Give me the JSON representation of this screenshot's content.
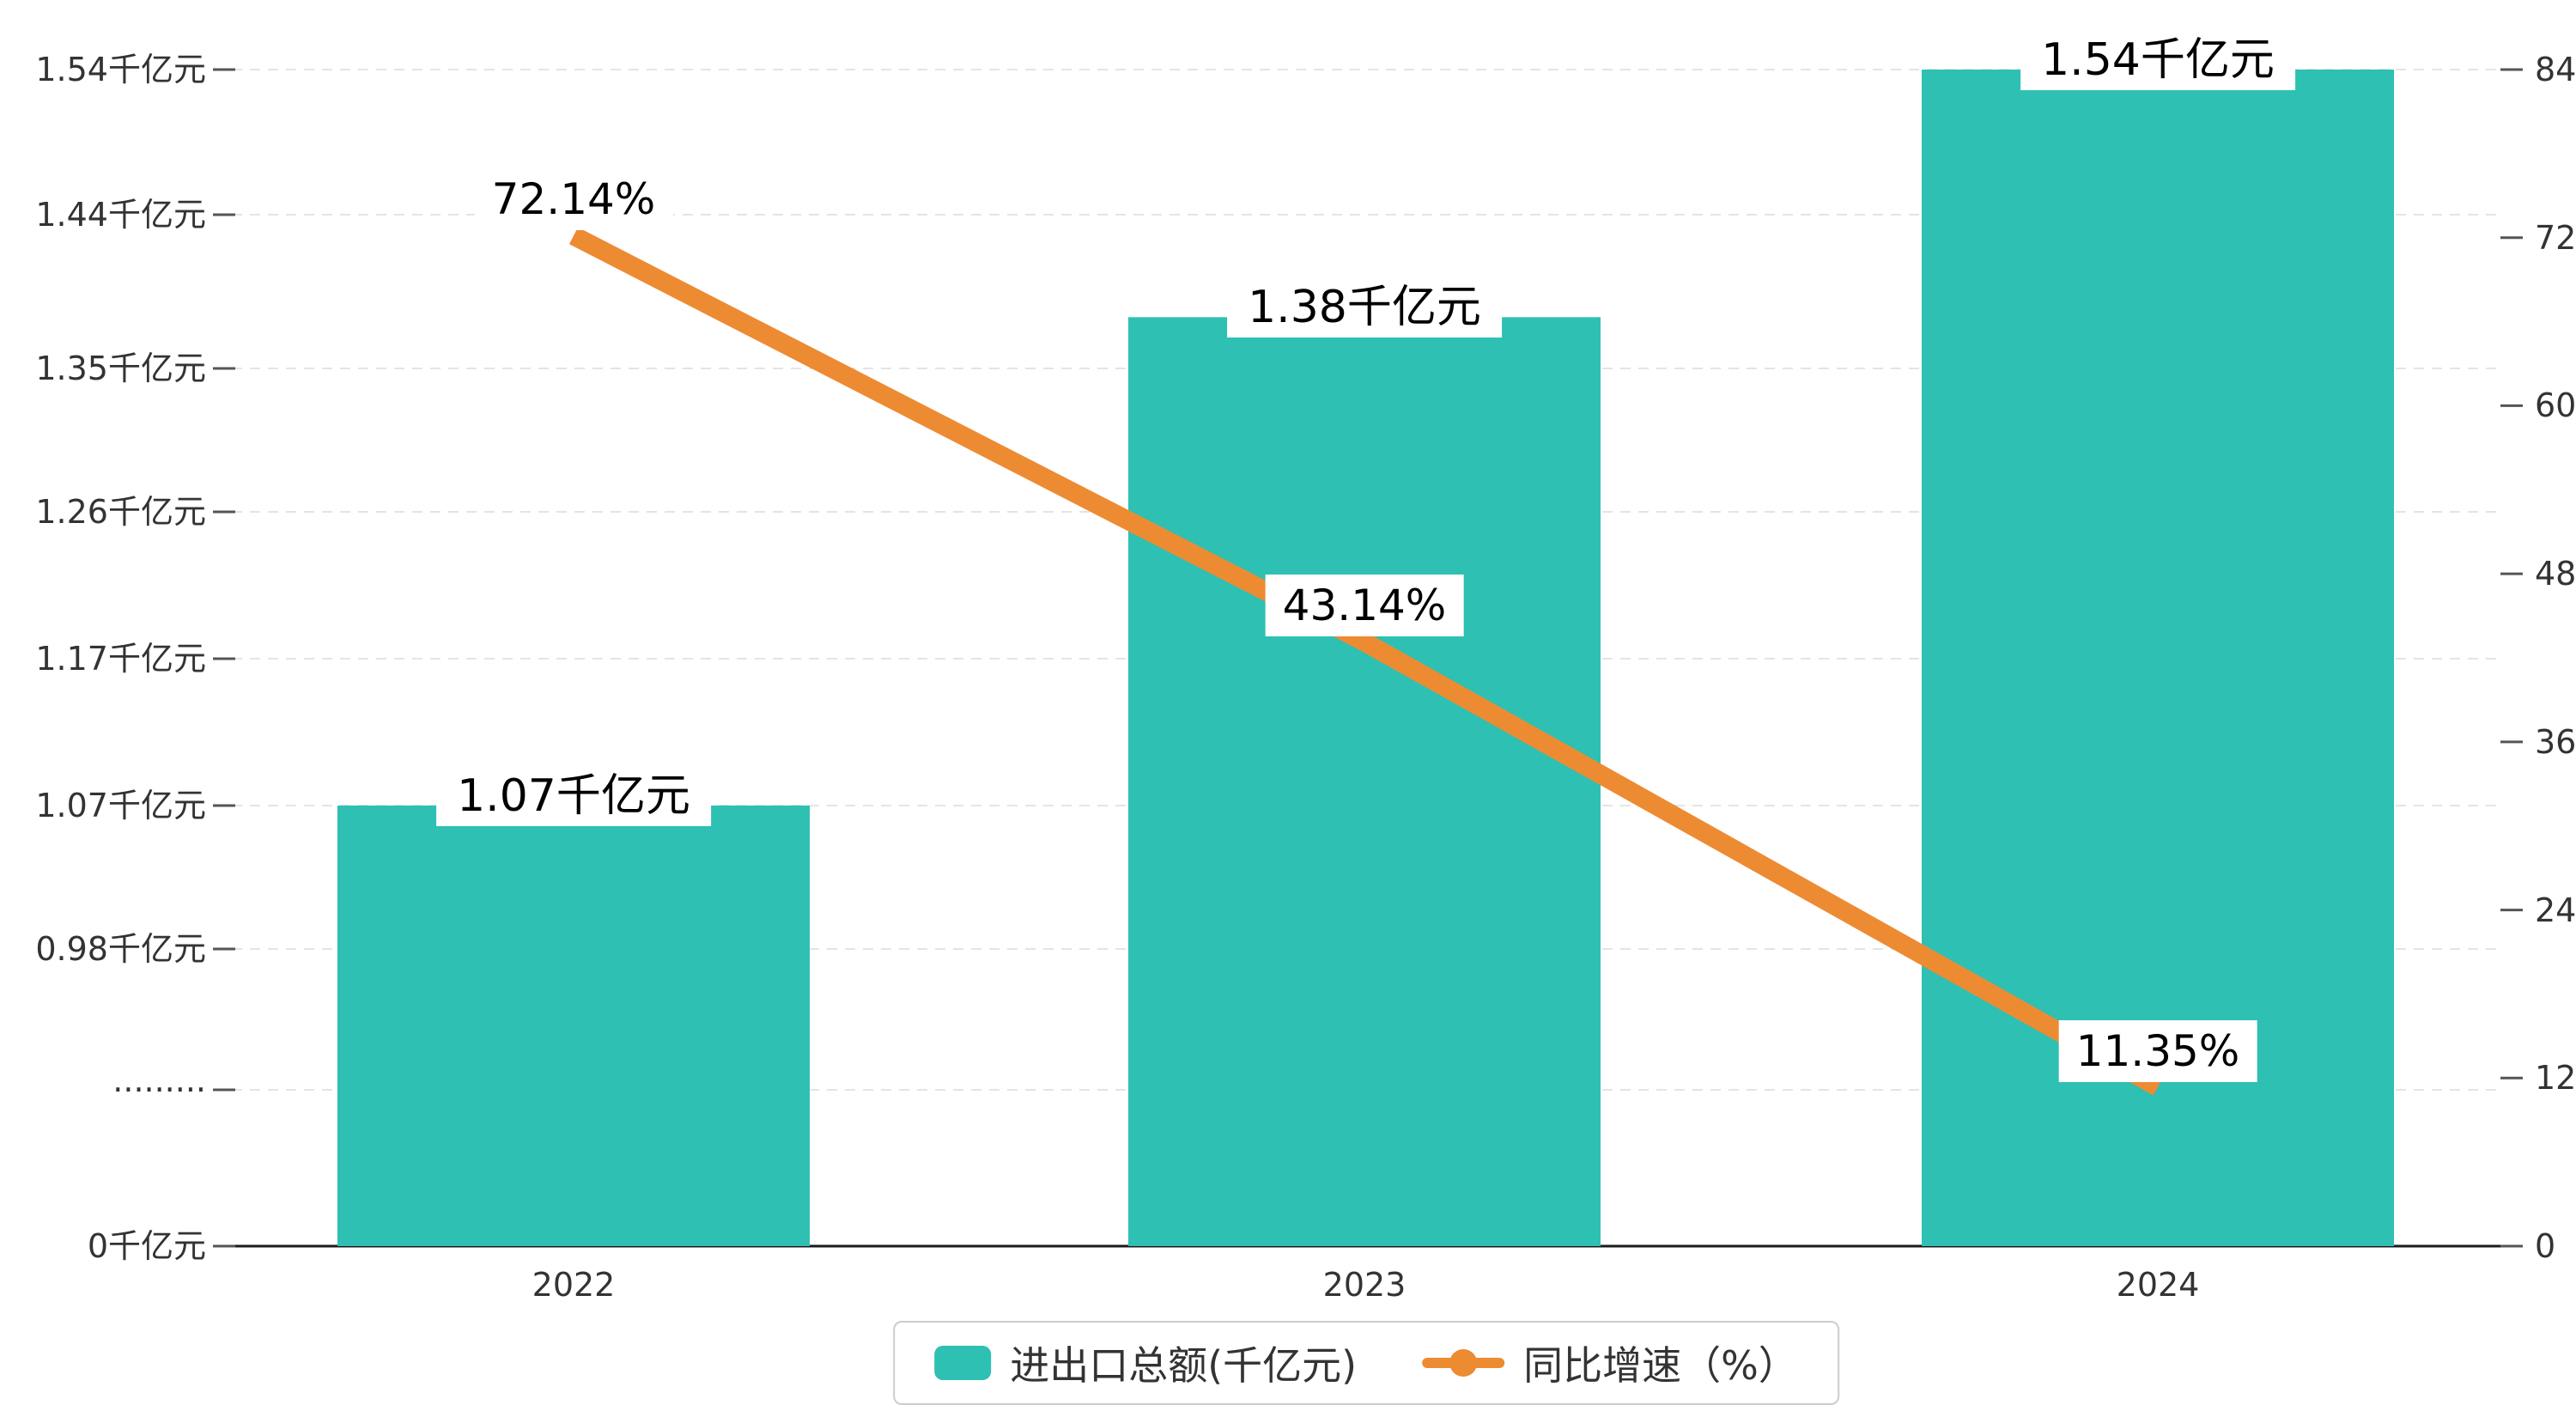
{
  "chart_data": {
    "type": "bar",
    "combo": "bar+line dual axis",
    "title": "",
    "categories": [
      "2022",
      "2023",
      "2024"
    ],
    "series": [
      {
        "name": "进出口总额(千亿元)",
        "type": "bar",
        "axis": "left",
        "unit": "千亿元",
        "values": [
          1.07,
          1.38,
          1.54
        ],
        "data_labels": [
          "1.07千亿元",
          "1.38千亿元",
          "1.54千亿元"
        ],
        "color": "#2ec0b2"
      },
      {
        "name": "同比增速（%）",
        "type": "line",
        "axis": "right",
        "unit": "%",
        "values": [
          72.14,
          43.14,
          11.35
        ],
        "data_labels": [
          "72.14%",
          "43.14%",
          "11.35%"
        ],
        "color": "#ed8b33"
      }
    ],
    "left_axis": {
      "tick_labels": [
        "1.54千亿元",
        "1.44千亿元",
        "1.35千亿元",
        "1.26千亿元",
        "1.17千亿元",
        "1.07千亿元",
        "0.98千亿元",
        "·········",
        "0千亿元"
      ],
      "tick_values": [
        1.54,
        1.44,
        1.35,
        1.26,
        1.17,
        1.07,
        0.98,
        null,
        0
      ],
      "axis_break": true
    },
    "right_axis": {
      "tick_labels": [
        "84",
        "72",
        "60",
        "48",
        "36",
        "24",
        "12",
        "0"
      ],
      "range": [
        0,
        84
      ]
    },
    "grid": "dashed horizontal gridlines",
    "legend": {
      "position": "bottom-center",
      "items": [
        "进出口总额(千亿元)",
        "同比增速（%）"
      ]
    },
    "colors": {
      "bar": "#2ec0b2",
      "line": "#ed8b33",
      "grid": "#e4e4e4",
      "axis": "#1a1a1a",
      "tick": "#555555",
      "text": "#333333"
    }
  }
}
